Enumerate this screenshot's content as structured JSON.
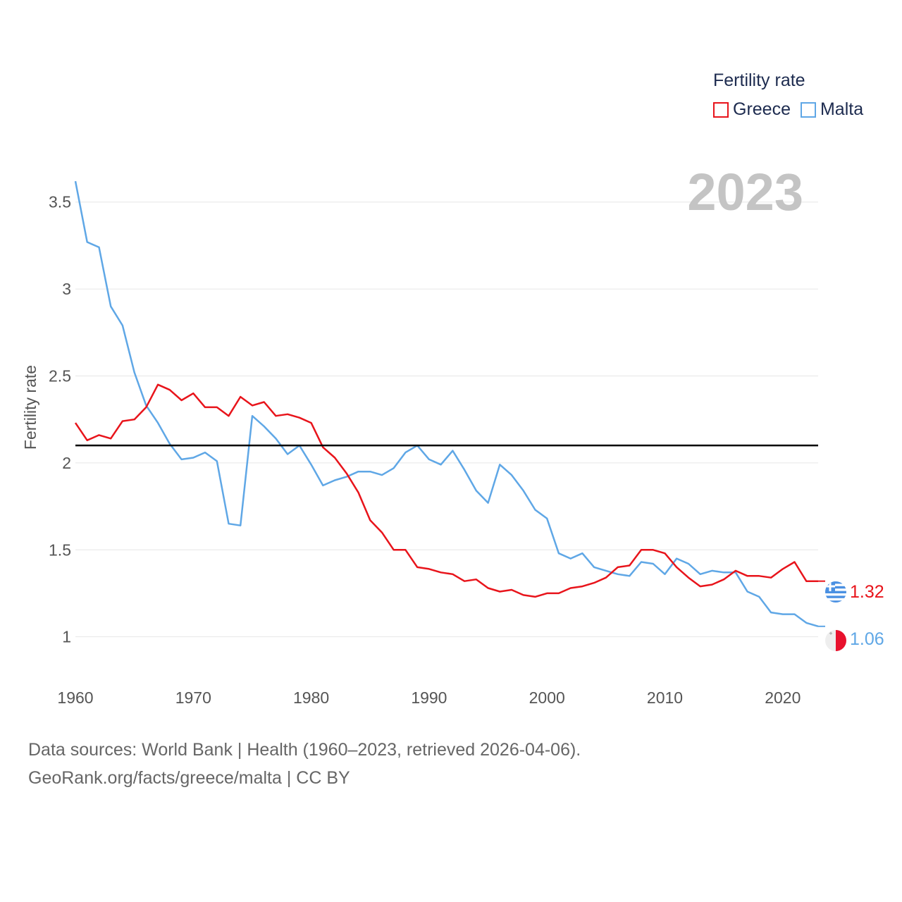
{
  "legend": {
    "title": "Fertility rate",
    "items": [
      {
        "label": "Greece"
      },
      {
        "label": "Malta"
      }
    ]
  },
  "footer": {
    "line1": "Data sources: World Bank | Health (1960–2023, retrieved 2026-04-06).",
    "line2": "GeoRank.org/facts/greece/malta | CC BY"
  },
  "chart_data": {
    "type": "line",
    "title": "Fertility rate",
    "ylabel": "Fertility rate",
    "xlabel": "",
    "year_label": "2023",
    "xlim": [
      1960,
      2023
    ],
    "ylim": [
      0.8,
      3.75
    ],
    "x_ticks": [
      "1960",
      "1970",
      "1980",
      "1990",
      "2000",
      "2010",
      "2020"
    ],
    "y_ticks": [
      "1",
      "1.5",
      "2",
      "2.5",
      "3",
      "3.5"
    ],
    "reference_line": 2.1,
    "colors": {
      "greece": "#e8141b",
      "malta": "#5fa7e6",
      "grid": "#e6e6e6",
      "reference": "#000000",
      "year": "#c4c4c4"
    },
    "years": [
      1960,
      1961,
      1962,
      1963,
      1964,
      1965,
      1966,
      1967,
      1968,
      1969,
      1970,
      1971,
      1972,
      1973,
      1974,
      1975,
      1976,
      1977,
      1978,
      1979,
      1980,
      1981,
      1982,
      1983,
      1984,
      1985,
      1986,
      1987,
      1988,
      1989,
      1990,
      1991,
      1992,
      1993,
      1994,
      1995,
      1996,
      1997,
      1998,
      1999,
      2000,
      2001,
      2002,
      2003,
      2004,
      2005,
      2006,
      2007,
      2008,
      2009,
      2010,
      2011,
      2012,
      2013,
      2014,
      2015,
      2016,
      2017,
      2018,
      2019,
      2020,
      2021,
      2022,
      2023
    ],
    "series": [
      {
        "name": "Greece",
        "end_label": "1.32",
        "values": [
          2.23,
          2.13,
          2.16,
          2.14,
          2.24,
          2.25,
          2.32,
          2.45,
          2.42,
          2.36,
          2.4,
          2.32,
          2.32,
          2.27,
          2.38,
          2.33,
          2.35,
          2.27,
          2.28,
          2.26,
          2.23,
          2.09,
          2.03,
          1.94,
          1.83,
          1.67,
          1.6,
          1.5,
          1.5,
          1.4,
          1.39,
          1.37,
          1.36,
          1.32,
          1.33,
          1.28,
          1.26,
          1.27,
          1.24,
          1.23,
          1.25,
          1.25,
          1.28,
          1.29,
          1.31,
          1.34,
          1.4,
          1.41,
          1.5,
          1.5,
          1.48,
          1.4,
          1.34,
          1.29,
          1.3,
          1.33,
          1.38,
          1.35,
          1.35,
          1.34,
          1.39,
          1.43,
          1.32,
          1.32
        ]
      },
      {
        "name": "Malta",
        "end_label": "1.06",
        "values": [
          3.62,
          3.27,
          3.24,
          2.9,
          2.79,
          2.52,
          2.33,
          2.23,
          2.11,
          2.02,
          2.03,
          2.06,
          2.01,
          1.65,
          1.64,
          2.27,
          2.21,
          2.14,
          2.05,
          2.1,
          1.99,
          1.87,
          1.9,
          1.92,
          1.95,
          1.95,
          1.93,
          1.97,
          2.06,
          2.1,
          2.02,
          1.99,
          2.07,
          1.96,
          1.84,
          1.77,
          1.99,
          1.93,
          1.84,
          1.73,
          1.68,
          1.48,
          1.45,
          1.48,
          1.4,
          1.38,
          1.36,
          1.35,
          1.43,
          1.42,
          1.36,
          1.45,
          1.42,
          1.36,
          1.38,
          1.37,
          1.37,
          1.26,
          1.23,
          1.14,
          1.13,
          1.13,
          1.08,
          1.06
        ]
      }
    ]
  }
}
